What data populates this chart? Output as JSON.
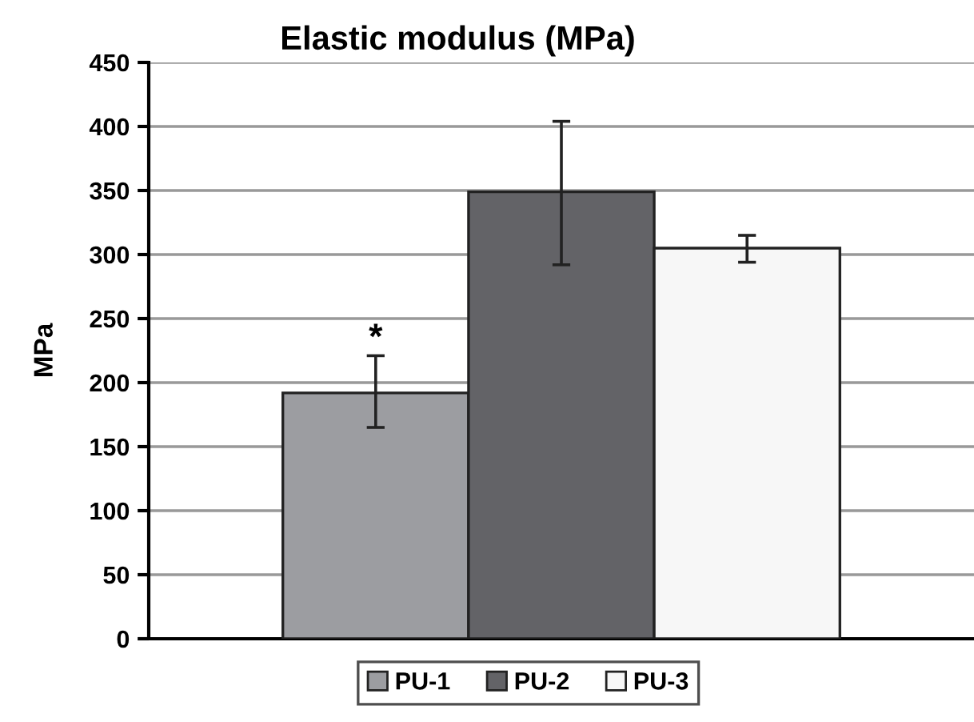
{
  "chart_data": {
    "type": "bar",
    "title": "Elastic modulus (MPa)",
    "ylabel": "MPa",
    "categories": [
      null
    ],
    "series": [
      {
        "name": "PU-1",
        "color": "#9c9da1",
        "values": [
          192
        ],
        "errors": [
          [
            165,
            221
          ]
        ]
      },
      {
        "name": "PU-2",
        "color": "#636367",
        "values": [
          349
        ],
        "errors": [
          [
            292,
            404
          ]
        ]
      },
      {
        "name": "PU-3",
        "color": "#f7f7f7",
        "values": [
          305
        ],
        "errors": [
          [
            294,
            315
          ]
        ]
      }
    ],
    "annotations": [
      "*"
    ],
    "ylim": [
      0,
      450
    ],
    "yticks": [
      0,
      50,
      100,
      150,
      200,
      250,
      300,
      350,
      400,
      450
    ],
    "grid": "y",
    "legend": "bottom"
  }
}
